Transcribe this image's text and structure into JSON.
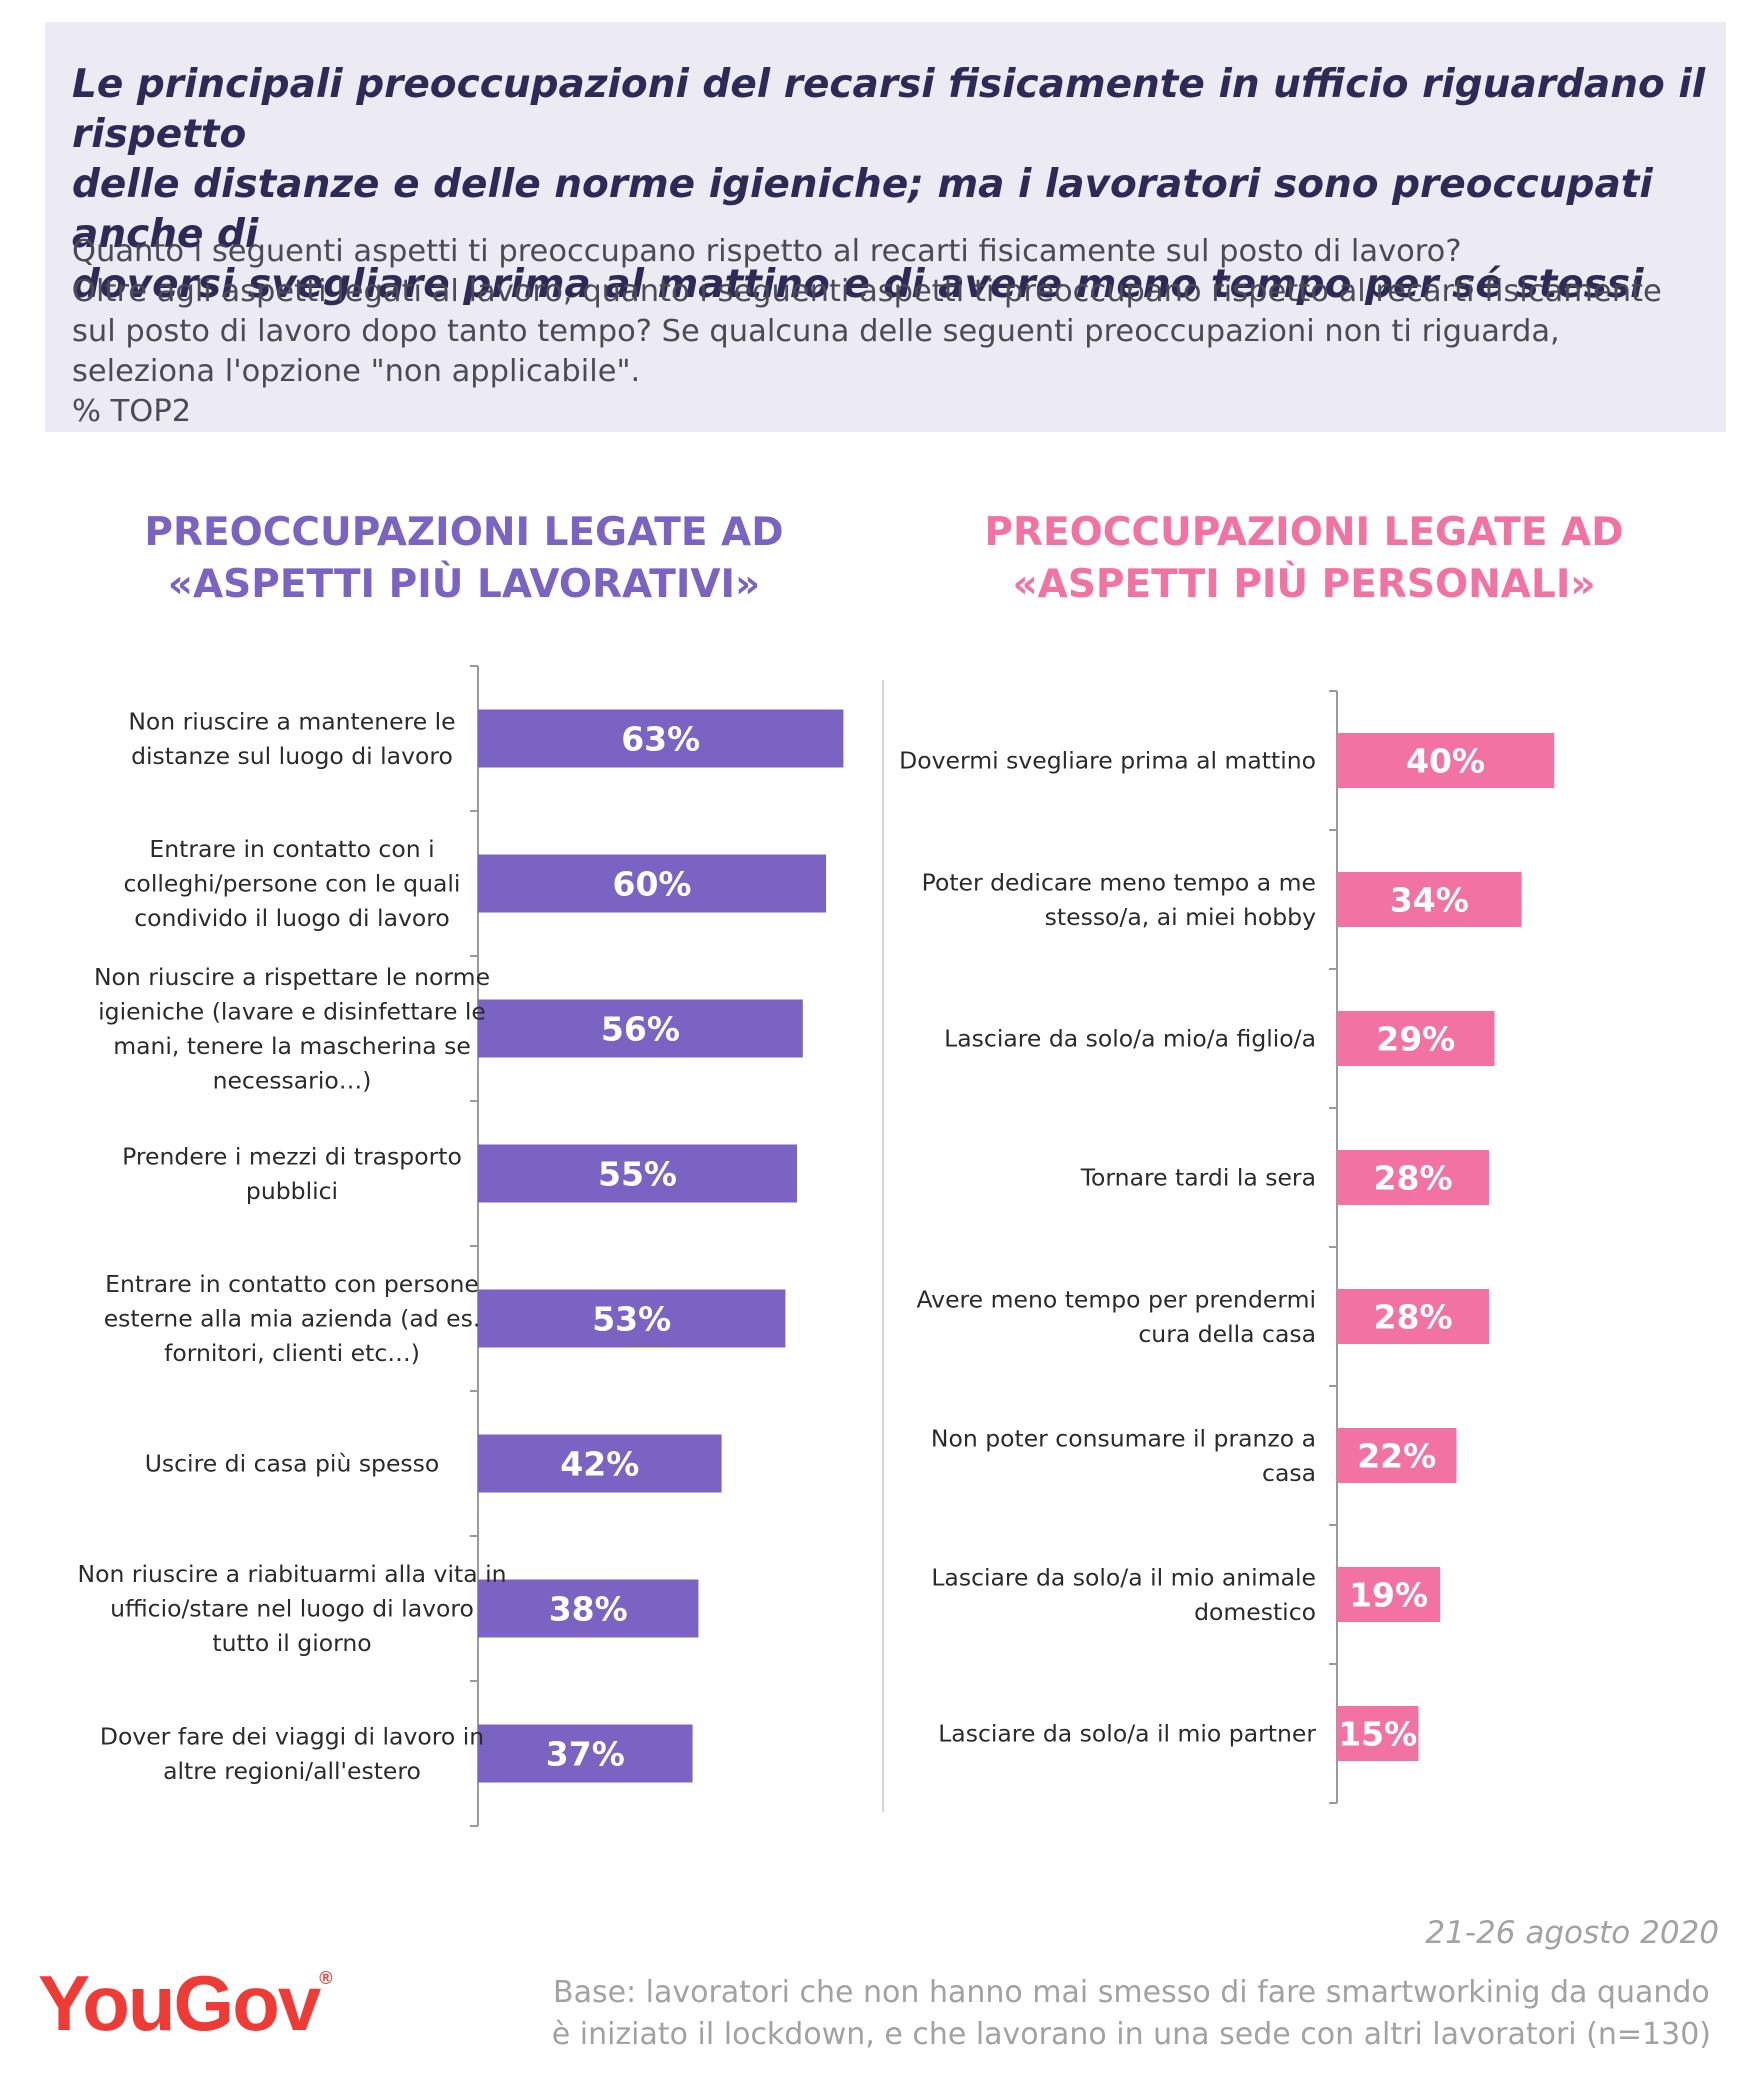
{
  "header": {
    "headline_lines": [
      "Le principali preoccupazioni del recarsi fisicamente in ufficio riguardano il rispetto",
      "delle distanze e delle norme igieniche; ma i lavoratori sono preoccupati anche di",
      "doversi svegliare prima al mattino e di avere meno tempo per sé stessi"
    ],
    "question_lines": [
      "Quanto i seguenti aspetti ti preoccupano rispetto al recarti fisicamente sul posto di lavoro?",
      "Oltre agli aspetti legati al lavoro, quanto i seguenti aspetti ti preoccupano rispetto al recarti fisicamente",
      "sul posto di lavoro dopo tanto tempo? Se qualcuna delle seguenti preoccupazioni non ti riguarda,",
      "seleziona l'opzione \"non applicabile\".",
      "% TOP2"
    ]
  },
  "chart_data": [
    {
      "type": "bar",
      "orientation": "horizontal",
      "title_lines": [
        "PREOCCUPAZIONI LEGATE AD",
        "«ASPETTI PIÙ LAVORATIVI»"
      ],
      "color": "#7b63c3",
      "categories": [
        [
          "Non riuscire a mantenere le",
          "distanze sul luogo di lavoro"
        ],
        [
          "Entrare in contatto con i",
          "colleghi/persone con le quali",
          "condivido il luogo di lavoro"
        ],
        [
          "Non riuscire a rispettare le norme",
          "igieniche (lavare e disinfettare le",
          "mani, tenere la mascherina se",
          "necessario…)"
        ],
        [
          "Prendere i mezzi di trasporto",
          "pubblici"
        ],
        [
          "Entrare in contatto con persone",
          "esterne alla mia azienda (ad es.",
          "fornitori, clienti etc…)"
        ],
        [
          "Uscire di casa più spesso"
        ],
        [
          "Non riuscire a riabituarmi alla vita in",
          "ufficio/stare nel luogo di lavoro",
          "tutto il giorno"
        ],
        [
          "Dover fare dei viaggi di lavoro in",
          "altre regioni/all'estero"
        ]
      ],
      "values": [
        63,
        60,
        56,
        55,
        53,
        42,
        38,
        37
      ],
      "labels": [
        "63%",
        "60%",
        "56%",
        "55%",
        "53%",
        "42%",
        "38%",
        "37%"
      ],
      "unit": "%"
    },
    {
      "type": "bar",
      "orientation": "horizontal",
      "title_lines": [
        "PREOCCUPAZIONI LEGATE AD",
        "«ASPETTI PIÙ PERSONALI»"
      ],
      "color": "#f272a4",
      "categories": [
        [
          "Dovermi svegliare prima al mattino"
        ],
        [
          "Poter dedicare meno tempo a me",
          "stesso/a, ai miei hobby"
        ],
        [
          "Lasciare da solo/a mio/a figlio/a"
        ],
        [
          "Tornare tardi la sera"
        ],
        [
          "Avere meno tempo per prendermi",
          "cura della casa"
        ],
        [
          "Non poter consumare il pranzo a",
          "casa"
        ],
        [
          "Lasciare da solo/a il mio animale",
          "domestico"
        ],
        [
          "Lasciare da solo/a il mio partner"
        ]
      ],
      "values": [
        40,
        34,
        29,
        28,
        28,
        22,
        19,
        15
      ],
      "labels": [
        "40%",
        "34%",
        "29%",
        "28%",
        "28%",
        "22%",
        "19%",
        "15%"
      ],
      "unit": "%"
    }
  ],
  "footer": {
    "date": "21-26 agosto 2020",
    "base_lines": [
      "Base: lavoratori che non hanno mai smesso di fare smartworkinig da quando",
      "è iniziato il lockdown, e che lavorano in una sede con altri lavoratori (n=130)"
    ],
    "logo_text": "YouGov",
    "logo_mark": "®"
  }
}
